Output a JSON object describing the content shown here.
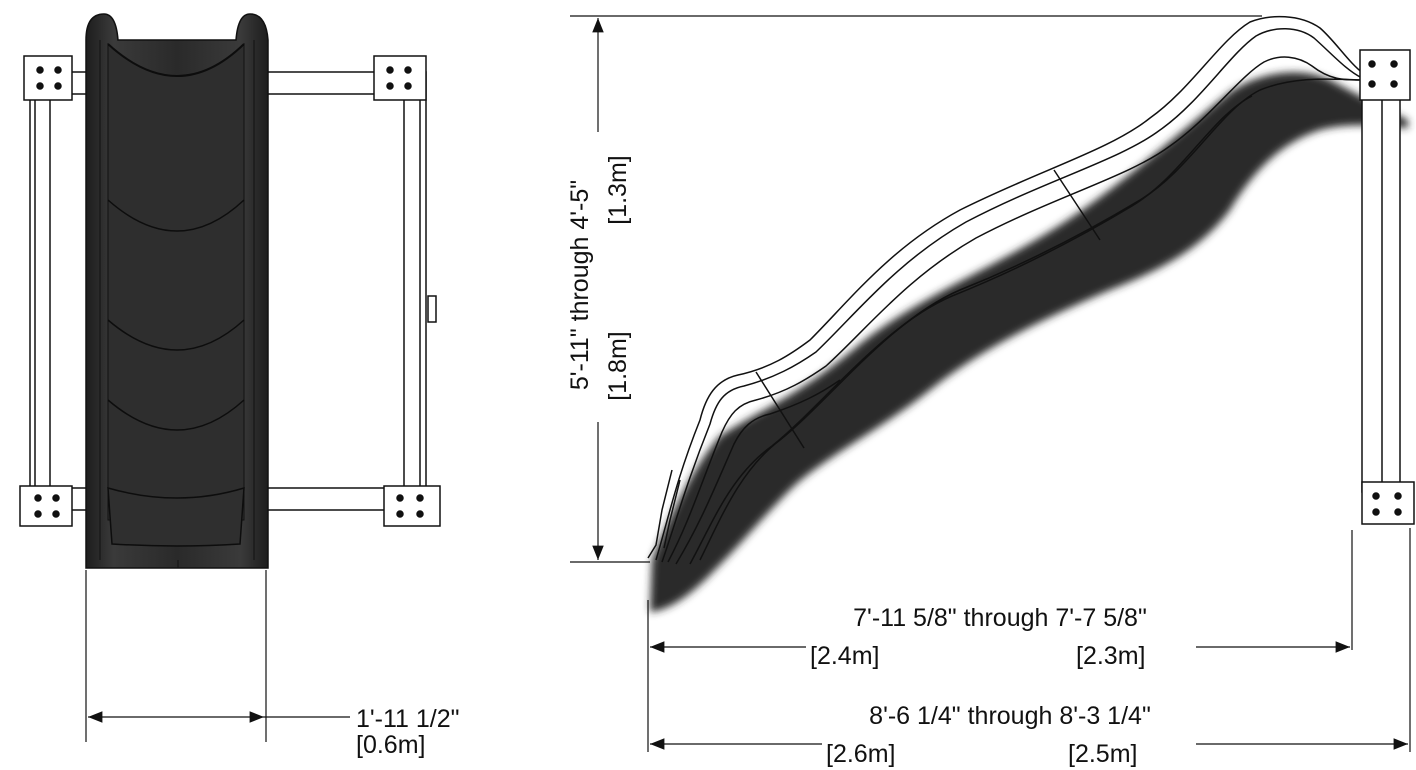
{
  "diagram": {
    "dimensions": {
      "width": {
        "primary": "1'-11 1/2\"",
        "metric": "[0.6m]"
      },
      "height": {
        "primary": "5'-11\" through 4'-5\"",
        "metric_high": "[1.8m]",
        "metric_low": "[1.3m]"
      },
      "run_inner": {
        "primary": "7'-11 5/8\" through 7'-7 5/8\"",
        "metric_a": "[2.4m]",
        "metric_b": "[2.3m]"
      },
      "run_outer": {
        "primary": "8'-6 1/4\" through 8'-3 1/4\"",
        "metric_a": "[2.6m]",
        "metric_b": "[2.5m]"
      }
    },
    "colors": {
      "slide": "#2b2b2b",
      "slide_shadow": "#3a3a3a",
      "line": "#111111",
      "frame_fill": "#ffffff"
    }
  }
}
